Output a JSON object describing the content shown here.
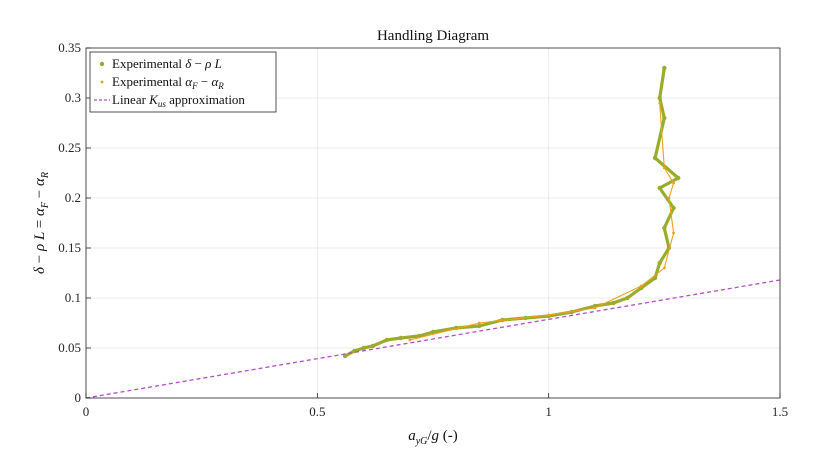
{
  "chart_data": {
    "type": "scatter",
    "title": "Handling Diagram",
    "xlabel": "a_yG/g (-)",
    "ylabel": "δ − ρ L = α_F − α_R",
    "xlim": [
      0,
      1.5
    ],
    "ylim": [
      0,
      0.35
    ],
    "xticks": [
      0,
      0.5,
      1,
      1.5
    ],
    "xtick_labels": [
      "0",
      "0.5",
      "1",
      "1.5"
    ],
    "yticks": [
      0,
      0.05,
      0.1,
      0.15,
      0.2,
      0.25,
      0.3,
      0.35
    ],
    "ytick_labels": [
      "0",
      "0.05",
      "0.1",
      "0.15",
      "0.2",
      "0.25",
      "0.3",
      "0.35"
    ],
    "grid": true,
    "legend_position": "top-left",
    "colors": {
      "delta_rho_L": "#9aac2c",
      "alphaF_alphaR": "#f0a020",
      "linear": "#b14fc5"
    },
    "series": [
      {
        "name": "Experimental δ − ρ L",
        "style": "points",
        "points": [
          [
            0.56,
            0.042
          ],
          [
            0.58,
            0.047
          ],
          [
            0.6,
            0.05
          ],
          [
            0.62,
            0.052
          ],
          [
            0.65,
            0.058
          ],
          [
            0.68,
            0.06
          ],
          [
            0.72,
            0.062
          ],
          [
            0.75,
            0.066
          ],
          [
            0.8,
            0.07
          ],
          [
            0.85,
            0.072
          ],
          [
            0.9,
            0.078
          ],
          [
            0.95,
            0.08
          ],
          [
            1.0,
            0.082
          ],
          [
            1.05,
            0.086
          ],
          [
            1.1,
            0.092
          ],
          [
            1.14,
            0.095
          ],
          [
            1.17,
            0.1
          ],
          [
            1.2,
            0.11
          ],
          [
            1.23,
            0.12
          ],
          [
            1.24,
            0.135
          ],
          [
            1.26,
            0.15
          ],
          [
            1.25,
            0.17
          ],
          [
            1.27,
            0.19
          ],
          [
            1.24,
            0.21
          ],
          [
            1.28,
            0.22
          ],
          [
            1.23,
            0.24
          ],
          [
            1.25,
            0.28
          ],
          [
            1.24,
            0.3
          ],
          [
            1.25,
            0.33
          ]
        ]
      },
      {
        "name": "Experimental α_F − α_R",
        "style": "points",
        "points": [
          [
            0.7,
            0.058
          ],
          [
            0.85,
            0.075
          ],
          [
            1.0,
            0.083
          ],
          [
            1.1,
            0.09
          ],
          [
            1.2,
            0.112
          ],
          [
            1.25,
            0.13
          ],
          [
            1.27,
            0.165
          ],
          [
            1.26,
            0.2
          ],
          [
            1.27,
            0.215
          ],
          [
            1.25,
            0.23
          ],
          [
            1.24,
            0.295
          ]
        ]
      },
      {
        "name": "Linear K_us approximation",
        "style": "dashed-line",
        "points": [
          [
            0,
            0
          ],
          [
            1.5,
            0.118
          ]
        ]
      }
    ]
  }
}
